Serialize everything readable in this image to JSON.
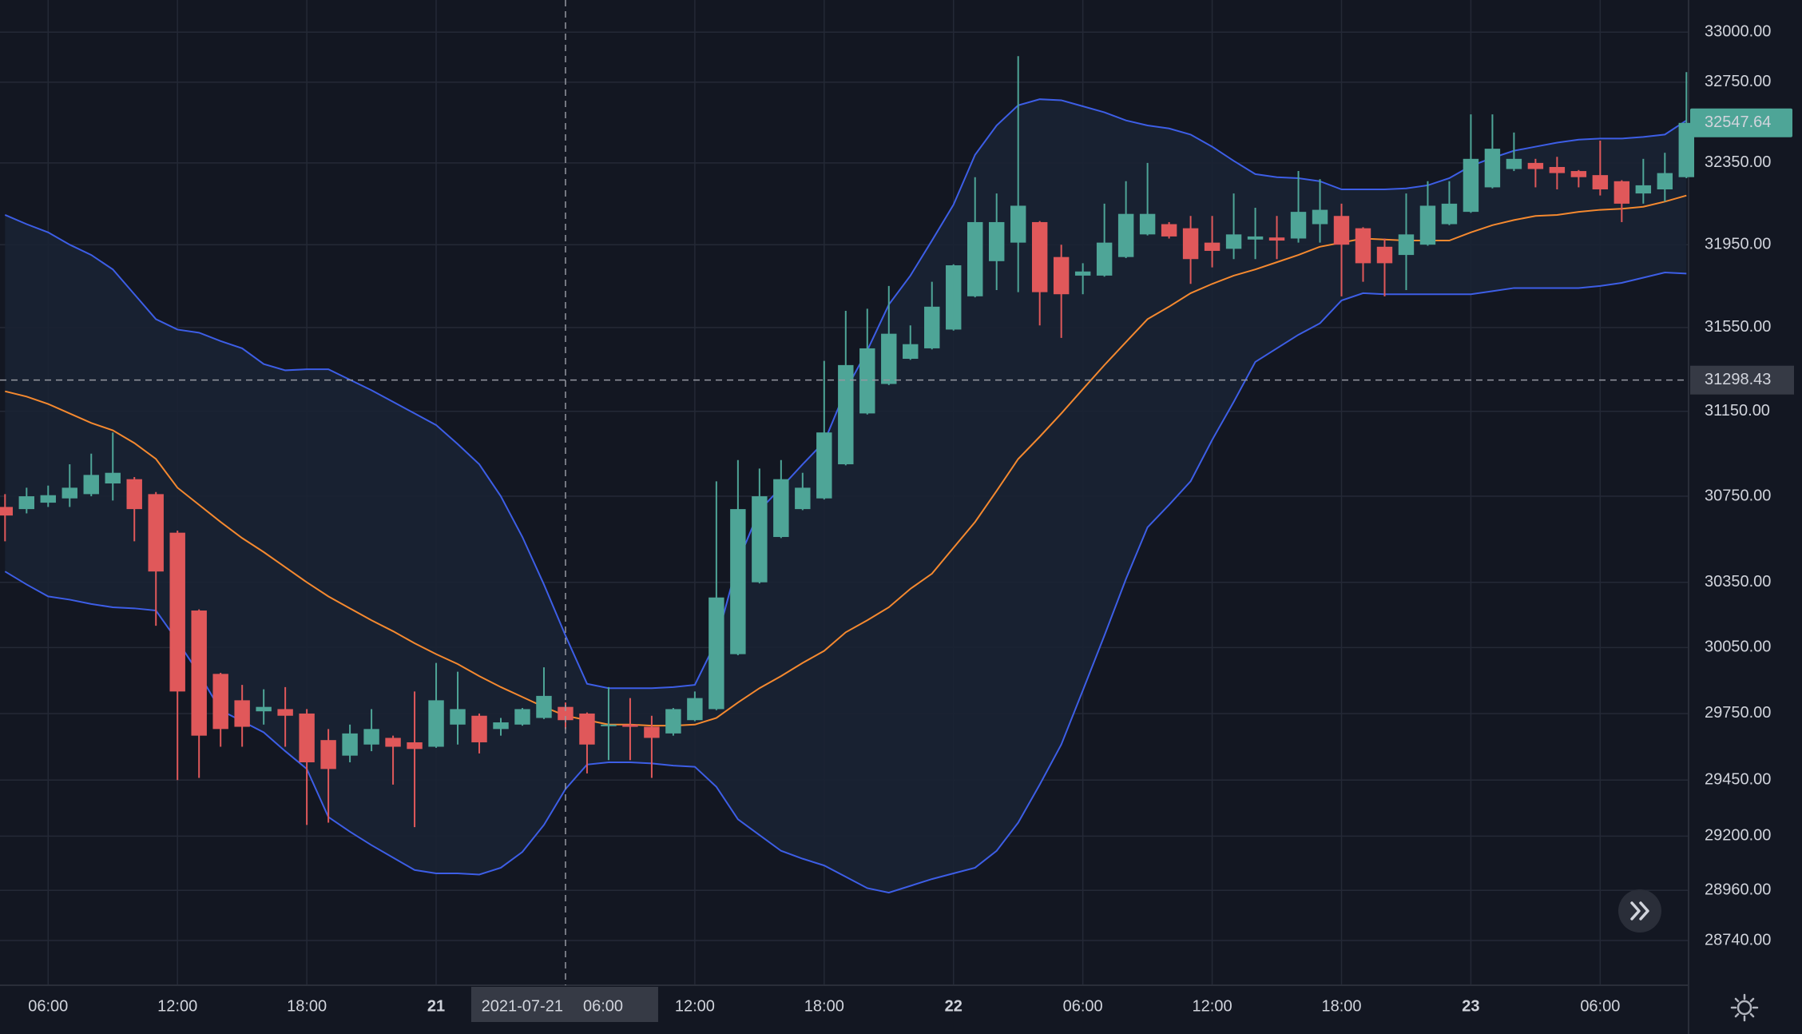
{
  "chart_data": {
    "type": "candlestick",
    "x": [
      "2021-07-20 04:00",
      "2021-07-20 05:00",
      "2021-07-20 06:00",
      "2021-07-20 07:00",
      "2021-07-20 08:00",
      "2021-07-20 09:00",
      "2021-07-20 10:00",
      "2021-07-20 11:00",
      "2021-07-20 12:00",
      "2021-07-20 13:00",
      "2021-07-20 14:00",
      "2021-07-20 15:00",
      "2021-07-20 16:00",
      "2021-07-20 17:00",
      "2021-07-20 18:00",
      "2021-07-20 19:00",
      "2021-07-20 20:00",
      "2021-07-20 21:00",
      "2021-07-20 22:00",
      "2021-07-20 23:00",
      "2021-07-21 00:00",
      "2021-07-21 01:00",
      "2021-07-21 02:00",
      "2021-07-21 03:00",
      "2021-07-21 04:00",
      "2021-07-21 05:00",
      "2021-07-21 06:00",
      "2021-07-21 07:00",
      "2021-07-21 08:00",
      "2021-07-21 09:00",
      "2021-07-21 10:00",
      "2021-07-21 11:00",
      "2021-07-21 12:00",
      "2021-07-21 13:00",
      "2021-07-21 14:00",
      "2021-07-21 15:00",
      "2021-07-21 16:00",
      "2021-07-21 17:00",
      "2021-07-21 18:00",
      "2021-07-21 19:00",
      "2021-07-21 20:00",
      "2021-07-21 21:00",
      "2021-07-21 22:00",
      "2021-07-21 23:00",
      "2021-07-22 00:00",
      "2021-07-22 01:00",
      "2021-07-22 02:00",
      "2021-07-22 03:00",
      "2021-07-22 04:00",
      "2021-07-22 05:00",
      "2021-07-22 06:00",
      "2021-07-22 07:00",
      "2021-07-22 08:00",
      "2021-07-22 09:00",
      "2021-07-22 10:00",
      "2021-07-22 11:00",
      "2021-07-22 12:00",
      "2021-07-22 13:00",
      "2021-07-22 14:00",
      "2021-07-22 15:00",
      "2021-07-22 16:00",
      "2021-07-22 17:00",
      "2021-07-22 18:00",
      "2021-07-22 19:00",
      "2021-07-22 20:00",
      "2021-07-22 21:00",
      "2021-07-22 22:00",
      "2021-07-22 23:00",
      "2021-07-23 00:00",
      "2021-07-23 01:00",
      "2021-07-23 02:00",
      "2021-07-23 03:00",
      "2021-07-23 04:00",
      "2021-07-23 05:00",
      "2021-07-23 06:00",
      "2021-07-23 07:00",
      "2021-07-23 08:00",
      "2021-07-23 09:00",
      "2021-07-23 10:00"
    ],
    "open": [
      30700,
      30690,
      30720,
      30740,
      30760,
      30810,
      30830,
      30760,
      30580,
      30220,
      29930,
      29810,
      29760,
      29770,
      29750,
      29630,
      29560,
      29610,
      29640,
      29620,
      29600,
      29700,
      29740,
      29680,
      29700,
      29730,
      29780,
      29750,
      29695,
      29700,
      29690,
      29660,
      29720,
      29770,
      30020,
      30350,
      30560,
      30690,
      30740,
      30900,
      31140,
      31280,
      31400,
      31450,
      31540,
      31700,
      31870,
      31960,
      32060,
      31890,
      31800,
      31800,
      31890,
      32000,
      32050,
      32030,
      31960,
      31930,
      31975,
      31985,
      31980,
      32050,
      32090,
      32030,
      31940,
      31900,
      31950,
      32050,
      32110,
      32230,
      32320,
      32350,
      32330,
      32310,
      32290,
      32260,
      32200,
      32220,
      32280
    ],
    "high": [
      30760,
      30790,
      30800,
      30900,
      30950,
      31050,
      30840,
      30770,
      30590,
      30225,
      29935,
      29880,
      29860,
      29870,
      29770,
      29680,
      29700,
      29770,
      29650,
      29850,
      29980,
      29940,
      29750,
      29730,
      29775,
      29960,
      29800,
      29755,
      29870,
      29820,
      29740,
      29775,
      29850,
      30820,
      30920,
      30880,
      30920,
      30860,
      31390,
      31630,
      31640,
      31750,
      31560,
      31770,
      31855,
      32280,
      32200,
      32880,
      32065,
      31950,
      31860,
      32150,
      32260,
      32350,
      32060,
      32090,
      32090,
      32200,
      32130,
      32090,
      32310,
      32270,
      32150,
      32035,
      31980,
      32200,
      32260,
      32260,
      32590,
      32590,
      32500,
      32370,
      32380,
      32315,
      32460,
      32265,
      32370,
      32400,
      32800
    ],
    "low": [
      30540,
      30670,
      30700,
      30700,
      30750,
      30730,
      30540,
      30150,
      29450,
      29460,
      29600,
      29600,
      29700,
      29600,
      29250,
      29260,
      29530,
      29580,
      29430,
      29240,
      29595,
      29610,
      29570,
      29650,
      29695,
      29725,
      29680,
      29480,
      29540,
      29540,
      29460,
      29650,
      29715,
      29765,
      30015,
      30345,
      30555,
      30685,
      30735,
      30895,
      31135,
      31275,
      31395,
      31445,
      31535,
      31695,
      31730,
      31720,
      31560,
      31500,
      31710,
      31795,
      31885,
      31995,
      31980,
      31760,
      31840,
      31880,
      31880,
      31880,
      31960,
      31960,
      31700,
      31770,
      31700,
      31730,
      31945,
      32045,
      32105,
      32225,
      32310,
      32230,
      32220,
      32230,
      32190,
      32060,
      32150,
      32160,
      32275
    ],
    "close": [
      30660,
      30750,
      30755,
      30790,
      30850,
      30860,
      30690,
      30400,
      29850,
      29650,
      29680,
      29690,
      29780,
      29740,
      29530,
      29500,
      29660,
      29680,
      29600,
      29590,
      29810,
      29770,
      29620,
      29710,
      29770,
      29830,
      29720,
      29610,
      29700,
      29690,
      29640,
      29770,
      29820,
      30280,
      30690,
      30750,
      30830,
      30790,
      31050,
      31370,
      31450,
      31520,
      31470,
      31650,
      31850,
      32060,
      32060,
      32140,
      31720,
      31710,
      31820,
      31960,
      32100,
      32100,
      31990,
      31880,
      31920,
      32000,
      31990,
      31970,
      32110,
      32120,
      31950,
      31860,
      31860,
      32000,
      32140,
      32150,
      32370,
      32420,
      32370,
      32320,
      32300,
      32280,
      32220,
      32150,
      32240,
      32300,
      32547.64
    ],
    "upper_band": [
      32095,
      32050,
      32010,
      31950,
      31900,
      31830,
      31710,
      31590,
      31540,
      31525,
      31485,
      31450,
      31375,
      31345,
      31350,
      31350,
      31300,
      31250,
      31195,
      31140,
      31085,
      30995,
      30900,
      30750,
      30560,
      30340,
      30105,
      29885,
      29865,
      29865,
      29865,
      29870,
      29880,
      30080,
      30445,
      30685,
      30790,
      30900,
      31005,
      31250,
      31440,
      31660,
      31800,
      31970,
      32145,
      32390,
      32535,
      32635,
      32665,
      32660,
      32630,
      32600,
      32560,
      32535,
      32520,
      32490,
      32430,
      32360,
      32295,
      32280,
      32275,
      32260,
      32220,
      32220,
      32220,
      32225,
      32240,
      32275,
      32335,
      32375,
      32410,
      32430,
      32450,
      32465,
      32470,
      32470,
      32478,
      32490,
      32560
    ],
    "middle_band": [
      31245,
      31220,
      31185,
      31140,
      31095,
      31060,
      31000,
      30925,
      30790,
      30710,
      30630,
      30555,
      30490,
      30420,
      30350,
      30285,
      30230,
      30175,
      30125,
      30070,
      30020,
      29975,
      29920,
      29870,
      29825,
      29780,
      29740,
      29720,
      29700,
      29700,
      29695,
      29695,
      29700,
      29730,
      29800,
      29865,
      29920,
      29980,
      30035,
      30120,
      30175,
      30235,
      30320,
      30390,
      30510,
      30630,
      30775,
      30925,
      31030,
      31140,
      31255,
      31370,
      31480,
      31590,
      31650,
      31715,
      31760,
      31800,
      31830,
      31865,
      31900,
      31940,
      31960,
      31980,
      31975,
      31970,
      31970,
      31970,
      32010,
      32045,
      32070,
      32090,
      32095,
      32110,
      32120,
      32125,
      32135,
      32160,
      32190
    ],
    "lower_band": [
      30400,
      30340,
      30285,
      30270,
      30250,
      30235,
      30230,
      30220,
      30080,
      29930,
      29765,
      29715,
      29665,
      29580,
      29500,
      29285,
      29220,
      29160,
      29105,
      29050,
      29035,
      29035,
      29030,
      29060,
      29130,
      29250,
      29410,
      29520,
      29530,
      29530,
      29525,
      29515,
      29510,
      29420,
      29275,
      29205,
      29135,
      29100,
      29070,
      29020,
      28970,
      28950,
      28980,
      29010,
      29035,
      29060,
      29135,
      29260,
      29430,
      29610,
      29855,
      30105,
      30365,
      30605,
      30710,
      30820,
      31015,
      31195,
      31385,
      31450,
      31515,
      31570,
      31680,
      31715,
      31710,
      31710,
      31710,
      31710,
      31710,
      31725,
      31740,
      31740,
      31740,
      31740,
      31750,
      31765,
      31790,
      31815,
      31810
    ],
    "up_color": "#4ea597",
    "down_color": "#e0585a",
    "band_color": "#3d5ee6",
    "middle_color": "#f5892f",
    "band_fill": "#1a2233",
    "xlim": [
      "2021-07-20 03:46",
      "2021-07-23 10:06"
    ],
    "ylim": [
      28545,
      33162
    ],
    "log_scale": true,
    "grid": true,
    "yticks": [
      {
        "value": 33000,
        "label": "33000.00"
      },
      {
        "value": 32750,
        "label": "32750.00"
      },
      {
        "value": 32350,
        "label": "32350.00"
      },
      {
        "value": 31950,
        "label": "31950.00"
      },
      {
        "value": 31550,
        "label": "31550.00"
      },
      {
        "value": 31150,
        "label": "31150.00"
      },
      {
        "value": 30750,
        "label": "30750.00"
      },
      {
        "value": 30350,
        "label": "30350.00"
      },
      {
        "value": 30050,
        "label": "30050.00"
      },
      {
        "value": 29750,
        "label": "29750.00"
      },
      {
        "value": 29450,
        "label": "29450.00"
      },
      {
        "value": 29200,
        "label": "29200.00"
      },
      {
        "value": 28960,
        "label": "28960.00"
      },
      {
        "value": 28740,
        "label": "28740.00"
      }
    ],
    "xticks": [
      {
        "value": "2021-07-20 06:00",
        "label": "06:00"
      },
      {
        "value": "2021-07-20 12:00",
        "label": "12:00"
      },
      {
        "value": "2021-07-20 18:00",
        "label": "18:00"
      },
      {
        "value": "2021-07-21 00:00",
        "label": "21"
      },
      {
        "value": "2021-07-21 12:00",
        "label": "12:00"
      },
      {
        "value": "2021-07-21 18:00",
        "label": "18:00"
      },
      {
        "value": "2021-07-22 00:00",
        "label": "22"
      },
      {
        "value": "2021-07-22 06:00",
        "label": "06:00"
      },
      {
        "value": "2021-07-22 12:00",
        "label": "12:00"
      },
      {
        "value": "2021-07-22 18:00",
        "label": "18:00"
      },
      {
        "value": "2021-07-23 00:00",
        "label": "23"
      },
      {
        "value": "2021-07-23 06:00",
        "label": "06:00"
      }
    ],
    "crosshair": {
      "x": "2021-07-21 06:00",
      "x_label_date": "2021-07-21",
      "x_label_time": "06:00",
      "y": 31298.43
    }
  }
}
